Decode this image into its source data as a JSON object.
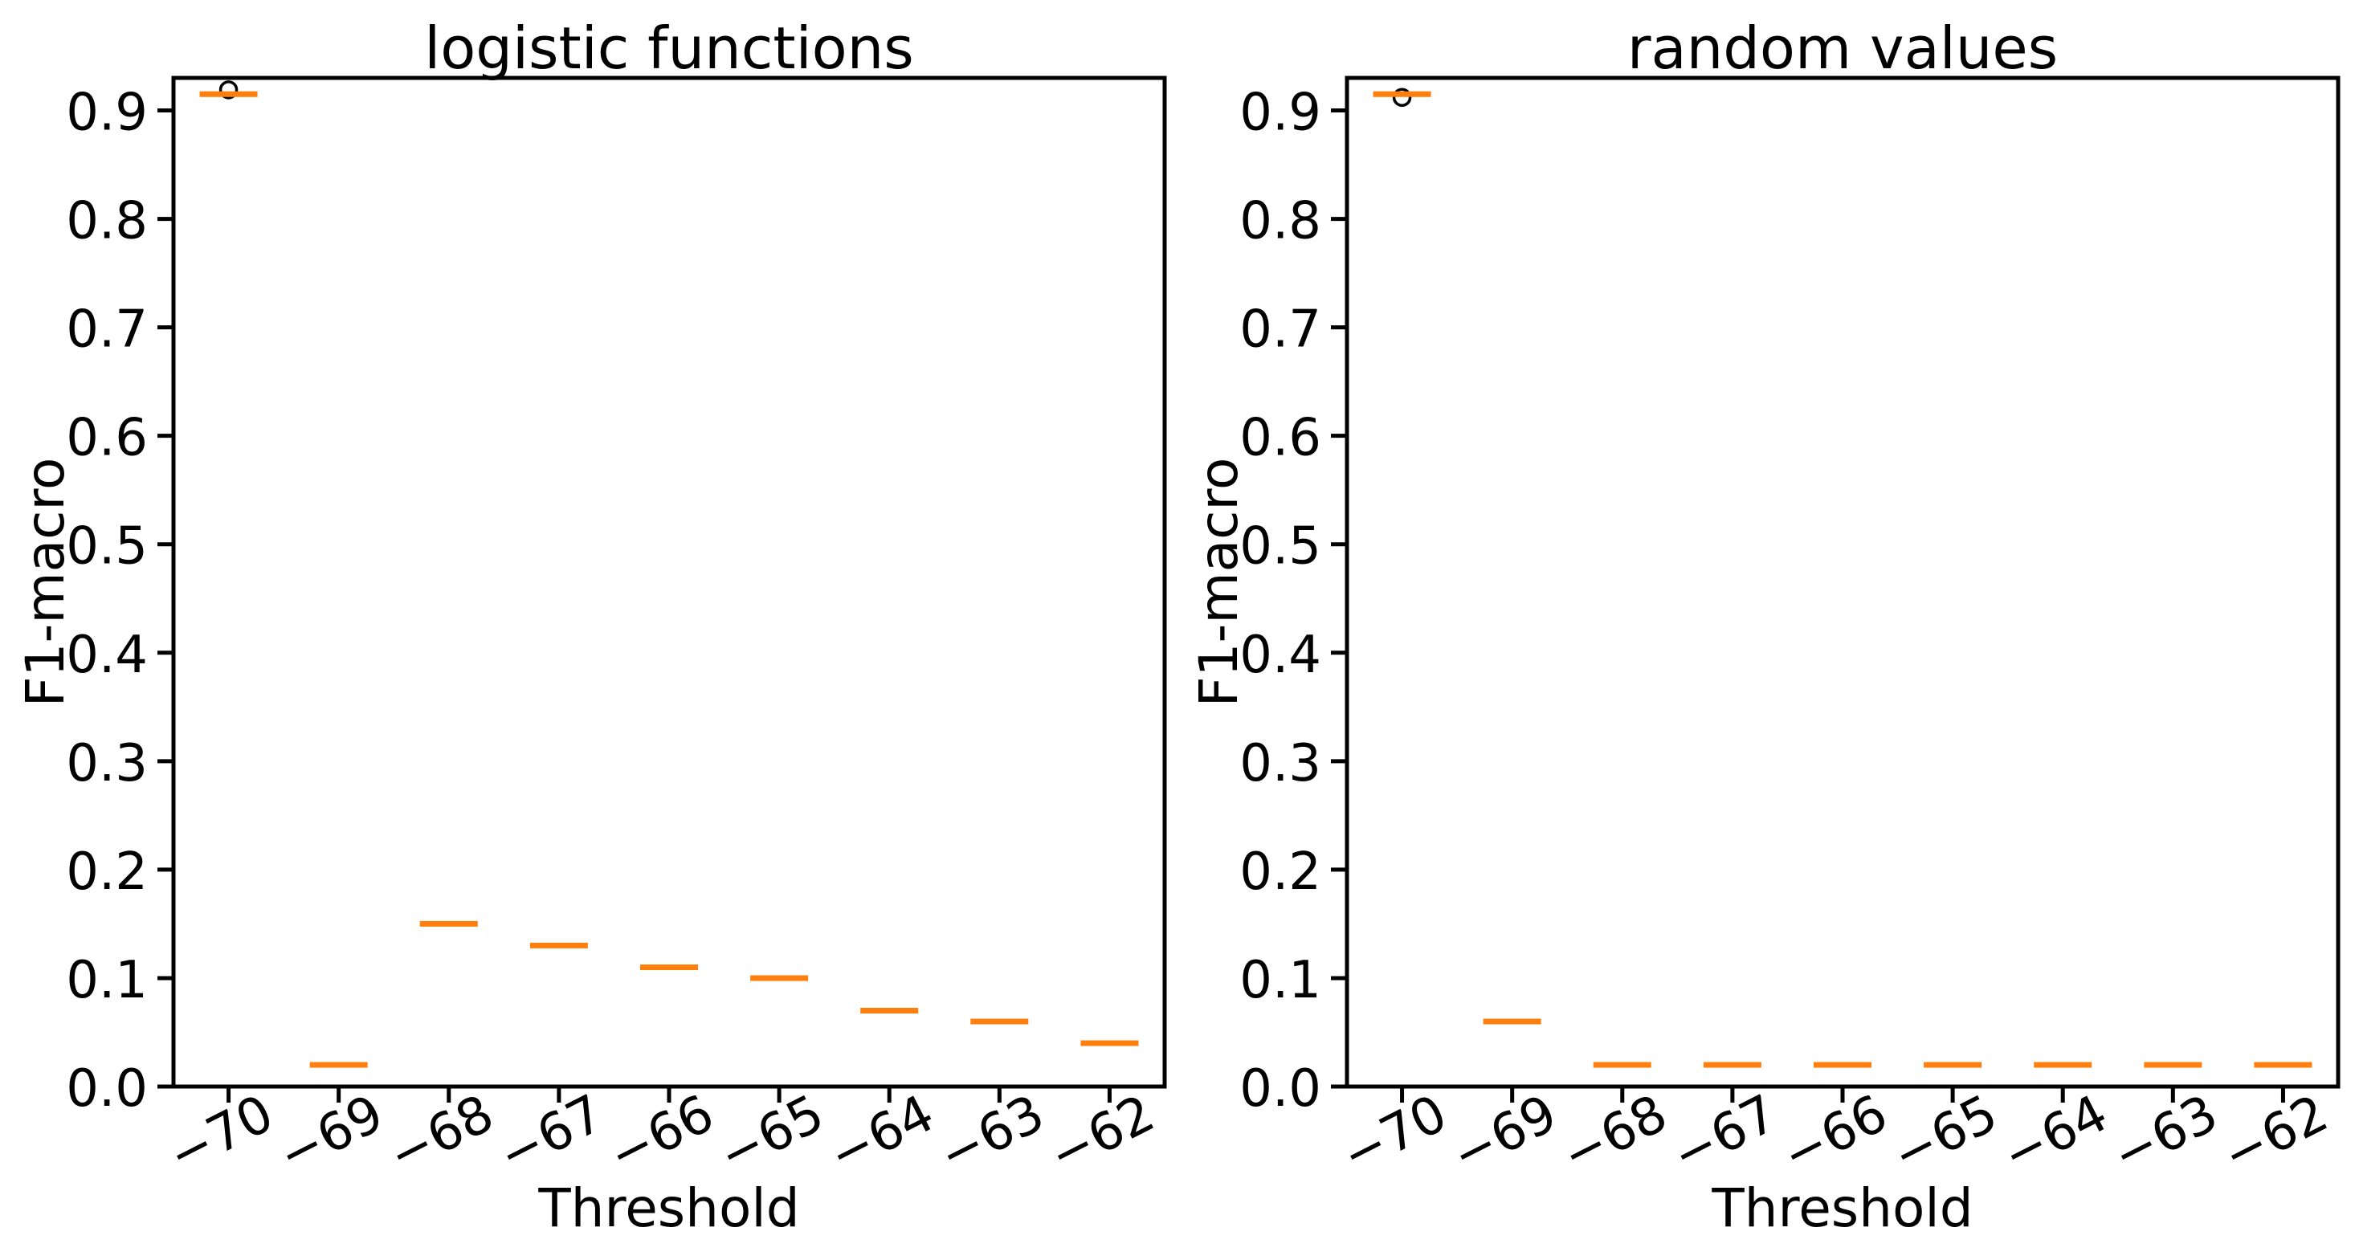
{
  "figure": {
    "background": "#ffffff",
    "description": "Two side-by-side box plots comparing F1-macro versus Threshold"
  },
  "colors": {
    "median": "#ff7f0e",
    "axis": "#000000",
    "text": "#000000",
    "background": "#ffffff"
  },
  "chart_data": [
    {
      "type": "boxplot",
      "title": "logistic functions",
      "xlabel": "Threshold",
      "ylabel": "F1-macro",
      "categories": [
        "−70",
        "−69",
        "−68",
        "−67",
        "−66",
        "−65",
        "−64",
        "−63",
        "−62"
      ],
      "medians": [
        0.915,
        0.02,
        0.15,
        0.13,
        0.11,
        0.1,
        0.07,
        0.06,
        0.04
      ],
      "outliers": [
        {
          "category_index": 0,
          "value": 0.919
        }
      ],
      "ylim": [
        0.0,
        0.93
      ],
      "yticks": [
        0.0,
        0.1,
        0.2,
        0.3,
        0.4,
        0.5,
        0.6,
        0.7,
        0.8,
        0.9
      ],
      "grid": false,
      "legend": null,
      "xtick_rotation_deg": 27
    },
    {
      "type": "boxplot",
      "title": "random values",
      "xlabel": "Threshold",
      "ylabel": "F1-macro",
      "categories": [
        "−70",
        "−69",
        "−68",
        "−67",
        "−66",
        "−65",
        "−64",
        "−63",
        "−62"
      ],
      "medians": [
        0.915,
        0.06,
        0.02,
        0.02,
        0.02,
        0.02,
        0.02,
        0.02,
        0.02
      ],
      "outliers": [
        {
          "category_index": 0,
          "value": 0.912
        }
      ],
      "ylim": [
        0.0,
        0.93
      ],
      "yticks": [
        0.0,
        0.1,
        0.2,
        0.3,
        0.4,
        0.5,
        0.6,
        0.7,
        0.8,
        0.9
      ],
      "grid": false,
      "legend": null,
      "xtick_rotation_deg": 27
    }
  ]
}
